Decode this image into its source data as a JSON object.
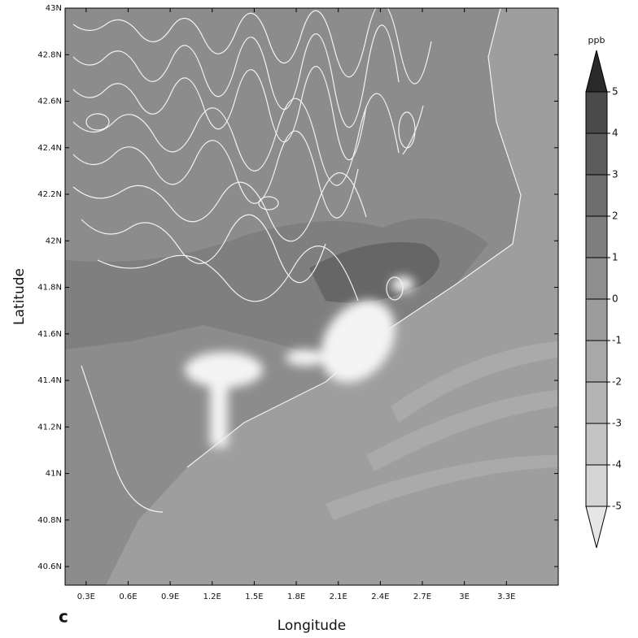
{
  "chart_data": {
    "type": "contour-map",
    "panel_label": "c",
    "x_label": "Longitude",
    "y_label": "Latitude",
    "xlim": [
      0.15,
      3.67
    ],
    "ylim": [
      40.52,
      43.0
    ],
    "xticks": [
      {
        "value": 0.3,
        "label": "0.3E"
      },
      {
        "value": 0.6,
        "label": "0.6E"
      },
      {
        "value": 0.9,
        "label": "0.9E"
      },
      {
        "value": 1.2,
        "label": "1.2E"
      },
      {
        "value": 1.5,
        "label": "1.5E"
      },
      {
        "value": 1.8,
        "label": "1.8E"
      },
      {
        "value": 2.1,
        "label": "2.1E"
      },
      {
        "value": 2.4,
        "label": "2.4E"
      },
      {
        "value": 2.7,
        "label": "2.7E"
      },
      {
        "value": 3.0,
        "label": "3E"
      },
      {
        "value": 3.3,
        "label": "3.3E"
      }
    ],
    "yticks": [
      {
        "value": 40.6,
        "label": "40.6N"
      },
      {
        "value": 40.8,
        "label": "40.8N"
      },
      {
        "value": 41.0,
        "label": "41N"
      },
      {
        "value": 41.2,
        "label": "41.2N"
      },
      {
        "value": 41.4,
        "label": "41.4N"
      },
      {
        "value": 41.6,
        "label": "41.6N"
      },
      {
        "value": 41.8,
        "label": "41.8N"
      },
      {
        "value": 42.0,
        "label": "42N"
      },
      {
        "value": 42.2,
        "label": "42.2N"
      },
      {
        "value": 42.4,
        "label": "42.4N"
      },
      {
        "value": 42.6,
        "label": "42.6N"
      },
      {
        "value": 42.8,
        "label": "42.8N"
      },
      {
        "value": 43.0,
        "label": "43N"
      }
    ],
    "colorbar": {
      "label": "ppb",
      "ticks": [
        -5,
        -4,
        -3,
        -2,
        -1,
        0,
        1,
        2,
        3,
        4,
        5
      ],
      "colors": [
        "#e6e6e6",
        "#d4d4d4",
        "#c4c4c4",
        "#b4b4b4",
        "#a8a8a8",
        "#9c9c9c",
        "#8e8e8e",
        "#7e7e7e",
        "#6e6e6e",
        "#5c5c5c",
        "#4a4a4a",
        "#2a2a2a"
      ]
    }
  }
}
